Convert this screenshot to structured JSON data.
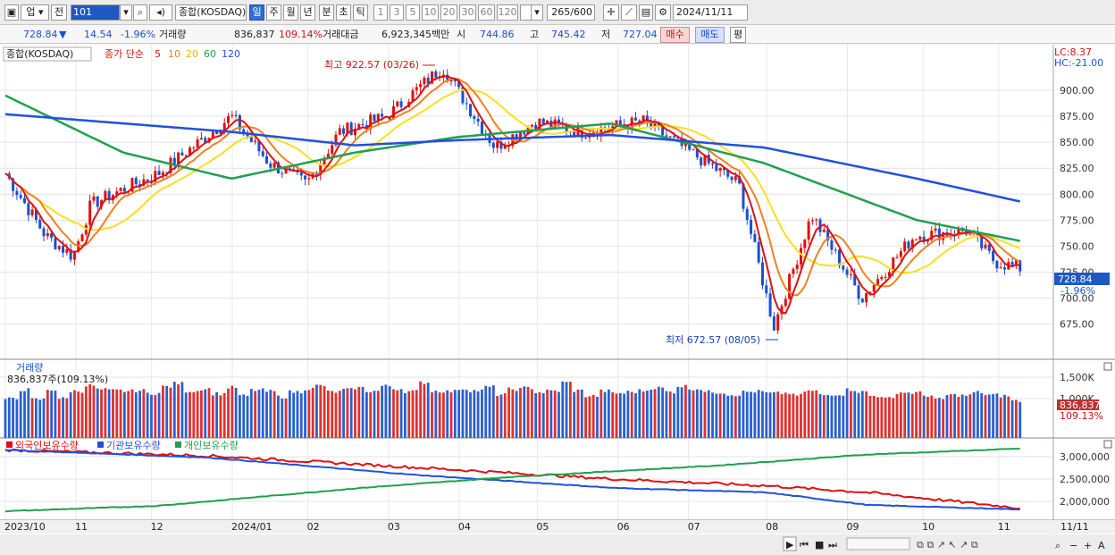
{
  "toolbar": {
    "market": "업",
    "prev_label": "전",
    "code": "101",
    "index_name": "종합(KOSDAQ)",
    "periods": [
      "일",
      "주",
      "월",
      "년",
      "분",
      "초",
      "틱"
    ],
    "selected_period": "일",
    "intervals": [
      "1",
      "3",
      "5",
      "10",
      "20",
      "30",
      "60",
      "120"
    ],
    "count": "265",
    "count_total": "/600",
    "date": "2024/11/11"
  },
  "quote": {
    "price": "728.84",
    "change": "14.54",
    "change_pct": "-1.96%",
    "volume_label": "거래량",
    "volume": "836,837",
    "volume_pct": "109.14%",
    "amount_label": "거래대금",
    "amount": "6,923,345백만",
    "open_label": "시",
    "open": "744.86",
    "high_label": "고",
    "high": "745.42",
    "low_label": "저",
    "low": "727.04",
    "buy_label": "매수",
    "sell_label": "매도",
    "eval_label": "평"
  },
  "price_panel": {
    "name": "종합(KOSDAQ)",
    "ma_label": "종가 단순",
    "ma_periods": [
      "5",
      "10",
      "20",
      "60",
      "120"
    ],
    "ma_colors": [
      "#e01010",
      "#f08020",
      "#f7e020",
      "#20a050",
      "#2050e0"
    ],
    "lc": "LC:8.37",
    "hc": "HC:-21.00",
    "high_annot": "최고 922.57 (03/26)",
    "low_annot": "최저 672.57 (08/05)",
    "current_label": "728.84",
    "current_pct": "-1.96%",
    "y_ticks": [
      "900.00",
      "875.00",
      "850.00",
      "825.00",
      "800.00",
      "775.00",
      "750.00",
      "725.00",
      "700.00",
      "675.00"
    ]
  },
  "volume_panel": {
    "title": "거래량",
    "subtitle": "836,837주(109.13%)",
    "y_ticks": [
      "1,500K",
      "1,000K"
    ],
    "current_label": "836,837",
    "current_pct": "109.13%"
  },
  "holding_panel": {
    "series": [
      "외국인보유수량",
      "기관보유수량",
      "개인보유수량"
    ],
    "colors": [
      "#e01010",
      "#2050e0",
      "#20a050"
    ],
    "y_ticks": [
      "3,000,000",
      "2,500,000",
      "2,000,000"
    ]
  },
  "x_axis": {
    "labels": [
      "2023/10",
      "11",
      "12",
      "2024/01",
      "02",
      "03",
      "04",
      "05",
      "06",
      "07",
      "08",
      "09",
      "10",
      "11"
    ],
    "right_label": "11/11"
  },
  "chart_data": {
    "type": "candlestick",
    "ylim": [
      660,
      935
    ],
    "points": [
      {
        "x": "2023-10-04",
        "y": 820
      },
      {
        "x": "2023-10-20",
        "y": 760
      },
      {
        "x": "2023-10-31",
        "y": 740
      },
      {
        "x": "2023-11-07",
        "y": 790
      },
      {
        "x": "2023-11-20",
        "y": 805
      },
      {
        "x": "2023-12-04",
        "y": 820
      },
      {
        "x": "2023-12-20",
        "y": 850
      },
      {
        "x": "2024-01-02",
        "y": 875
      },
      {
        "x": "2024-01-17",
        "y": 830
      },
      {
        "x": "2024-02-01",
        "y": 810
      },
      {
        "x": "2024-02-14",
        "y": 860
      },
      {
        "x": "2024-03-04",
        "y": 875
      },
      {
        "x": "2024-03-26",
        "y": 922.57
      },
      {
        "x": "2024-04-16",
        "y": 845
      },
      {
        "x": "2024-05-02",
        "y": 870
      },
      {
        "x": "2024-05-21",
        "y": 860
      },
      {
        "x": "2024-06-14",
        "y": 870
      },
      {
        "x": "2024-07-03",
        "y": 840
      },
      {
        "x": "2024-07-22",
        "y": 810
      },
      {
        "x": "2024-08-05",
        "y": 672.57
      },
      {
        "x": "2024-08-20",
        "y": 780
      },
      {
        "x": "2024-09-09",
        "y": 700
      },
      {
        "x": "2024-09-30",
        "y": 760
      },
      {
        "x": "2024-10-21",
        "y": 765
      },
      {
        "x": "2024-11-01",
        "y": 735
      },
      {
        "x": "2024-11-11",
        "y": 728.84
      }
    ],
    "ma120": [
      {
        "x": "2023-10-04",
        "y": 877
      },
      {
        "x": "2024-01-02",
        "y": 860
      },
      {
        "x": "2024-02-20",
        "y": 847
      },
      {
        "x": "2024-04-01",
        "y": 852
      },
      {
        "x": "2024-06-01",
        "y": 857
      },
      {
        "x": "2024-08-01",
        "y": 845
      },
      {
        "x": "2024-10-01",
        "y": 815
      },
      {
        "x": "2024-11-11",
        "y": 793
      }
    ],
    "ma60": [
      {
        "x": "2023-10-04",
        "y": 895
      },
      {
        "x": "2023-11-20",
        "y": 840
      },
      {
        "x": "2024-01-02",
        "y": 815
      },
      {
        "x": "2024-02-20",
        "y": 840
      },
      {
        "x": "2024-04-01",
        "y": 855
      },
      {
        "x": "2024-06-01",
        "y": 868
      },
      {
        "x": "2024-08-01",
        "y": 830
      },
      {
        "x": "2024-10-01",
        "y": 775
      },
      {
        "x": "2024-11-11",
        "y": 755
      }
    ],
    "volume_k": [
      870,
      1080,
      860,
      1080,
      880,
      1050,
      1170,
      1080,
      1060,
      1050,
      1060,
      1000,
      1150,
      1220,
      1050,
      1100,
      990,
      1130,
      940,
      1070,
      1040,
      920,
      1030,
      1100,
      1170,
      1030,
      1080,
      1120,
      1050,
      1160,
      1100,
      1040,
      1240,
      1050,
      1040,
      1100,
      1060,
      1140,
      970,
      1090,
      1120,
      1020,
      1050,
      1240,
      1060,
      940,
      1050,
      1000,
      1030,
      1060,
      1120,
      1030,
      1160,
      1100,
      1030,
      1020,
      970,
      1030,
      1040,
      1000,
      1000,
      950,
      1050,
      960,
      980,
      1080,
      1030,
      940,
      880,
      1020,
      1010,
      950,
      860,
      960,
      950,
      1020,
      960,
      940,
      830
    ]
  }
}
